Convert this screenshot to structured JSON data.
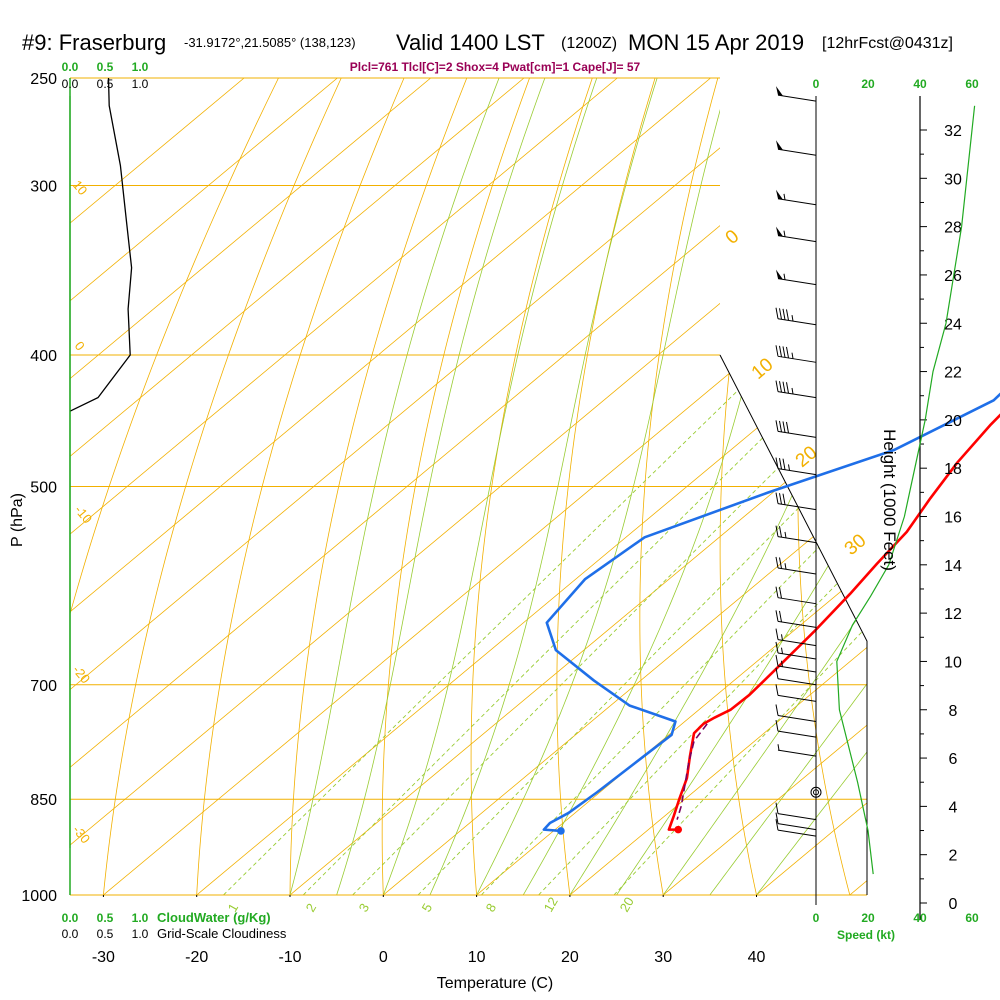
{
  "header": {
    "site": "#9: Fraserburg",
    "coords": "-31.9172°,21.5085° (138,123)",
    "valid": "Valid 1400 LST",
    "zulu": "(1200Z)",
    "date": "MON 15 Apr 2019",
    "forecast": "[12hrFcst@0431z]"
  },
  "indices": "Plcl=761 Tlcl[C]=2 Shox=4 Pwat[cm]=1 Cape[J]= 57",
  "colors": {
    "temperature": "#ff0000",
    "dewpoint": "#1f6fe8",
    "parcel": "#7a0060",
    "isobar": "#f2b000",
    "dry_adiabat": "#f2b000",
    "moist_adiabat": "#99cc33",
    "mixing_ratio": "#99cc33",
    "cloud": "#22aa22",
    "text": "#000000"
  },
  "labels": {
    "ylabel": "P (hPa)",
    "xlabel": "Temperature (C)",
    "height_label": "Height (1000 Feet)",
    "cloudwater_label": "CloudWater (g/Kg)",
    "cloudiness_label": "Grid-Scale Cloudiness",
    "speed_label": "Speed (kt)"
  },
  "chart_data": {
    "type": "line",
    "subtype": "skew-t log-p sounding",
    "y_pressure_ticks": [
      250,
      300,
      400,
      500,
      700,
      850,
      1000
    ],
    "x_temperature_ticks": [
      -30,
      -20,
      -10,
      0,
      10,
      20,
      30,
      40
    ],
    "xlim": [
      -33,
      45
    ],
    "ylim_pressure_hPa": [
      1000,
      250
    ],
    "isotherm_labels": [
      "0",
      "10",
      "20",
      "30"
    ],
    "isotherm_label_values": [
      0,
      10,
      20,
      30
    ],
    "dry_adiabat_labels": [
      "10",
      "0",
      "-10",
      "-20",
      "-30"
    ],
    "mixing_ratio_labels": [
      "1",
      "2",
      "3",
      "5",
      "8",
      "12",
      "20"
    ],
    "mixing_ratio_values": [
      1,
      2,
      3,
      5,
      8,
      12,
      20
    ],
    "series": [
      {
        "name": "temperature",
        "points": [
          [
            -6.3,
            265
          ],
          [
            -4,
            290
          ],
          [
            -1,
            320
          ],
          [
            0.8,
            345
          ],
          [
            2,
            370
          ],
          [
            3,
            395
          ],
          [
            3.7,
            420
          ],
          [
            4.6,
            450
          ],
          [
            5.9,
            480
          ],
          [
            7.6,
            510
          ],
          [
            9.4,
            540
          ],
          [
            10.3,
            570
          ],
          [
            11.3,
            600
          ],
          [
            12.3,
            640
          ],
          [
            13,
            680
          ],
          [
            13.5,
            712
          ],
          [
            13.4,
            730
          ],
          [
            12.7,
            740
          ],
          [
            12.3,
            748
          ],
          [
            12.5,
            760
          ],
          [
            15,
            790
          ],
          [
            17.5,
            820
          ],
          [
            19.4,
            850
          ],
          [
            21,
            875
          ],
          [
            22.2,
            895
          ],
          [
            23.2,
            895
          ]
        ]
      },
      {
        "name": "dewpoint",
        "points": [
          [
            -10.5,
            265
          ],
          [
            -8.5,
            290
          ],
          [
            -6,
            320
          ],
          [
            -3.5,
            350
          ],
          [
            -1.5,
            375
          ],
          [
            1.2,
            405
          ],
          [
            1.8,
            432
          ],
          [
            -2.5,
            470
          ],
          [
            -10.5,
            505
          ],
          [
            -18,
            545
          ],
          [
            -19,
            585
          ],
          [
            -17.5,
            630
          ],
          [
            -13,
            660
          ],
          [
            -5,
            695
          ],
          [
            2,
            725
          ],
          [
            9,
            745
          ],
          [
            10.3,
            762
          ],
          [
            10,
            800
          ],
          [
            9.7,
            840
          ],
          [
            9.3,
            870
          ],
          [
            8.6,
            885
          ],
          [
            8.8,
            895
          ],
          [
            10.8,
            897
          ]
        ]
      },
      {
        "name": "parcel",
        "points": [
          [
            12.7,
            748
          ],
          [
            13.5,
            770
          ],
          [
            15.8,
            800
          ],
          [
            18.2,
            830
          ],
          [
            20.5,
            860
          ],
          [
            21.8,
            880
          ]
        ]
      },
      {
        "name": "cloud-water",
        "points": [
          [
            0,
            250
          ],
          [
            0,
            1000
          ]
        ]
      },
      {
        "name": "cloudiness",
        "points": [
          [
            0.55,
            250
          ],
          [
            0.56,
            262
          ],
          [
            0.72,
            290
          ],
          [
            0.81,
            320
          ],
          [
            0.88,
            345
          ],
          [
            0.83,
            370
          ],
          [
            0.86,
            400
          ],
          [
            0.4,
            430
          ],
          [
            0,
            440
          ]
        ]
      }
    ],
    "cloudiness_axis": {
      "ticks": [
        "0.0",
        "0.5",
        "1.0"
      ],
      "values": [
        0,
        0.5,
        1.0
      ],
      "cloudwater_ticks": [
        "0.0",
        "0.5",
        "1.0"
      ]
    },
    "height_axis": {
      "label": "Height (1000 Feet)",
      "ticks": [
        0,
        2,
        4,
        6,
        8,
        10,
        12,
        14,
        16,
        18,
        20,
        22,
        24,
        26,
        28,
        30,
        32
      ]
    },
    "wind_speed_axis": {
      "label": "Speed (kt)",
      "ticks": [
        0,
        20,
        40,
        60
      ],
      "top_ticks": [
        0,
        20,
        40,
        60
      ],
      "speed_profile_kt": [
        [
          22,
          1.2
        ],
        [
          20,
          3
        ],
        [
          16,
          5
        ],
        [
          9,
          8
        ],
        [
          8,
          10
        ],
        [
          14,
          11.5
        ],
        [
          21,
          12.7
        ],
        [
          28,
          14
        ],
        [
          34,
          16
        ],
        [
          38,
          18
        ],
        [
          42,
          20
        ],
        [
          45,
          22
        ],
        [
          50,
          24
        ],
        [
          53,
          26
        ],
        [
          56,
          28
        ],
        [
          58,
          30
        ],
        [
          60,
          32
        ],
        [
          61,
          33
        ]
      ]
    },
    "wind_barbs": [
      {
        "pressure": 260,
        "speed_kt": 50
      },
      {
        "pressure": 285,
        "speed_kt": 50
      },
      {
        "pressure": 310,
        "speed_kt": 55
      },
      {
        "pressure": 330,
        "speed_kt": 55
      },
      {
        "pressure": 355,
        "speed_kt": 55
      },
      {
        "pressure": 380,
        "speed_kt": 45
      },
      {
        "pressure": 405,
        "speed_kt": 45
      },
      {
        "pressure": 430,
        "speed_kt": 45
      },
      {
        "pressure": 460,
        "speed_kt": 40
      },
      {
        "pressure": 490,
        "speed_kt": 35
      },
      {
        "pressure": 520,
        "speed_kt": 30
      },
      {
        "pressure": 550,
        "speed_kt": 25
      },
      {
        "pressure": 580,
        "speed_kt": 25
      },
      {
        "pressure": 610,
        "speed_kt": 20
      },
      {
        "pressure": 635,
        "speed_kt": 20
      },
      {
        "pressure": 655,
        "speed_kt": 15
      },
      {
        "pressure": 670,
        "speed_kt": 15
      },
      {
        "pressure": 685,
        "speed_kt": 15
      },
      {
        "pressure": 700,
        "speed_kt": 10
      },
      {
        "pressure": 720,
        "speed_kt": 10
      },
      {
        "pressure": 745,
        "speed_kt": 10
      },
      {
        "pressure": 765,
        "speed_kt": 10
      },
      {
        "pressure": 790,
        "speed_kt": 5
      },
      {
        "pressure": 840,
        "speed_kt": 0
      },
      {
        "pressure": 880,
        "speed_kt": 10
      },
      {
        "pressure": 895,
        "speed_kt": 10
      },
      {
        "pressure": 905,
        "speed_kt": 10
      }
    ]
  }
}
